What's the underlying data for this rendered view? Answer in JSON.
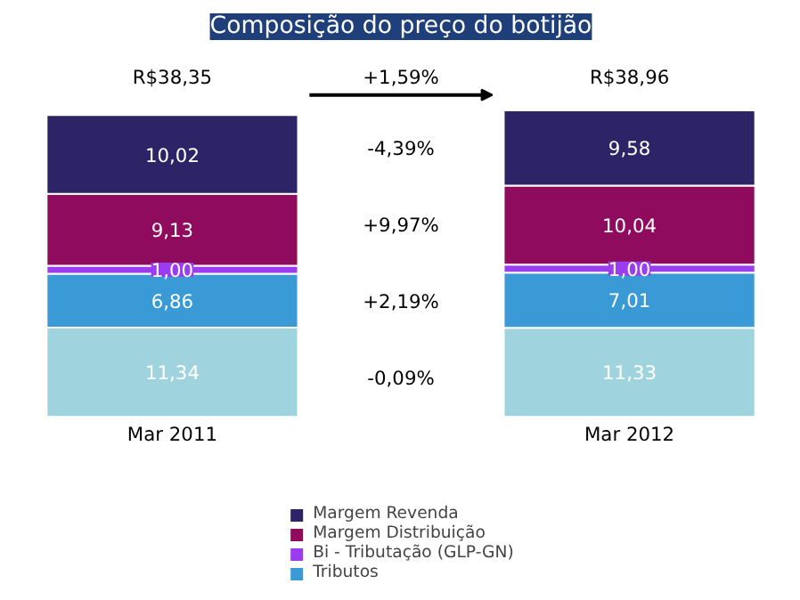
{
  "chart_data": {
    "type": "bar",
    "title": "Composição do preço do botijão",
    "stacked": true,
    "categories": [
      "Mar 2011",
      "Mar 2012"
    ],
    "series": [
      {
        "name": null,
        "color": "#9fd4de",
        "values": [
          11.34,
          11.33
        ],
        "value_labels": [
          "11,34",
          "11,33"
        ]
      },
      {
        "name": "Tributos",
        "color": "#3a9ad6",
        "values": [
          6.86,
          7.01
        ],
        "value_labels": [
          "6,86",
          "7,01"
        ]
      },
      {
        "name": "Bi - Tributação (GLP-GN)",
        "color": "#9b3cf0",
        "values": [
          1.0,
          1.0
        ],
        "value_labels": [
          "1,00",
          "1,00"
        ]
      },
      {
        "name": "Margem Distribuição",
        "color": "#8e0b5e",
        "values": [
          9.13,
          10.04
        ],
        "value_labels": [
          "9,13",
          "10,04"
        ]
      },
      {
        "name": "Margem Revenda",
        "color": "#2d2468",
        "values": [
          10.02,
          9.58
        ],
        "value_labels": [
          "10,02",
          "9,58"
        ]
      }
    ],
    "totals": [
      "R$38,35",
      "R$38,96"
    ],
    "annotations": [
      "+1,59%",
      "-4,39%",
      "+9,97%",
      "+2,19%",
      "-0,09%"
    ],
    "legend": "bottom",
    "tick_labels": "x",
    "grid": false
  }
}
